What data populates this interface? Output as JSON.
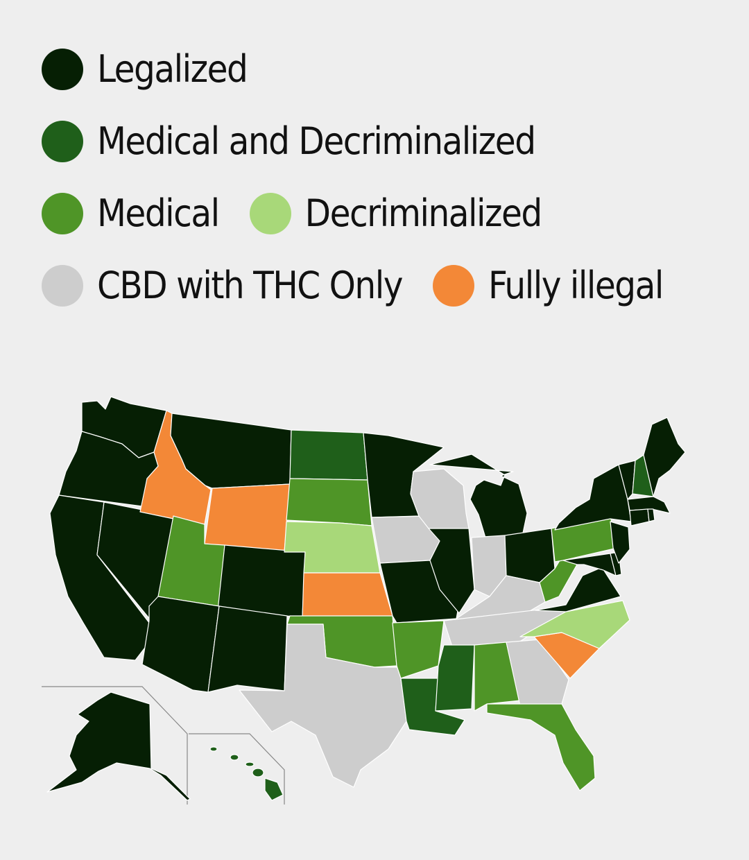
{
  "legend": {
    "legalized": {
      "label": "Legalized",
      "color": "#061f04"
    },
    "medical_decrim": {
      "label": "Medical and Decriminalized",
      "color": "#1f5f1a"
    },
    "medical": {
      "label": "Medical",
      "color": "#4f9527"
    },
    "decriminalized": {
      "label": "Decriminalized",
      "color": "#a8d879"
    },
    "cbd": {
      "label": "CBD with THC Only",
      "color": "#cdcdcd"
    },
    "illegal": {
      "label": "Fully illegal",
      "color": "#f38837"
    }
  },
  "map": {
    "states": {
      "WA": "legalized",
      "OR": "legalized",
      "CA": "legalized",
      "NV": "legalized",
      "ID": "illegal",
      "MT": "legalized",
      "WY": "illegal",
      "UT": "medical",
      "AZ": "legalized",
      "CO": "legalized",
      "NM": "legalized",
      "ND": "medical_decrim",
      "SD": "medical",
      "NE": "decriminalized",
      "KS": "illegal",
      "OK": "medical",
      "TX": "cbd",
      "MN": "legalized",
      "IA": "cbd",
      "MO": "legalized",
      "AR": "medical",
      "LA": "medical_decrim",
      "WI": "cbd",
      "IL": "legalized",
      "MI": "legalized",
      "IN": "cbd",
      "KY": "cbd",
      "TN": "cbd",
      "MS": "medical_decrim",
      "AL": "medical",
      "GA": "cbd",
      "FL": "medical",
      "SC": "illegal",
      "NC": "decriminalized",
      "VA": "legalized",
      "WV": "medical",
      "OH": "legalized",
      "PA": "medical",
      "NY": "legalized",
      "VT": "legalized",
      "NH": "medical_decrim",
      "ME": "legalized",
      "MA": "legalized",
      "CT": "legalized",
      "RI": "legalized",
      "NJ": "legalized",
      "DE": "legalized",
      "MD": "legalized",
      "AK": "legalized",
      "HI": "medical_decrim"
    }
  }
}
